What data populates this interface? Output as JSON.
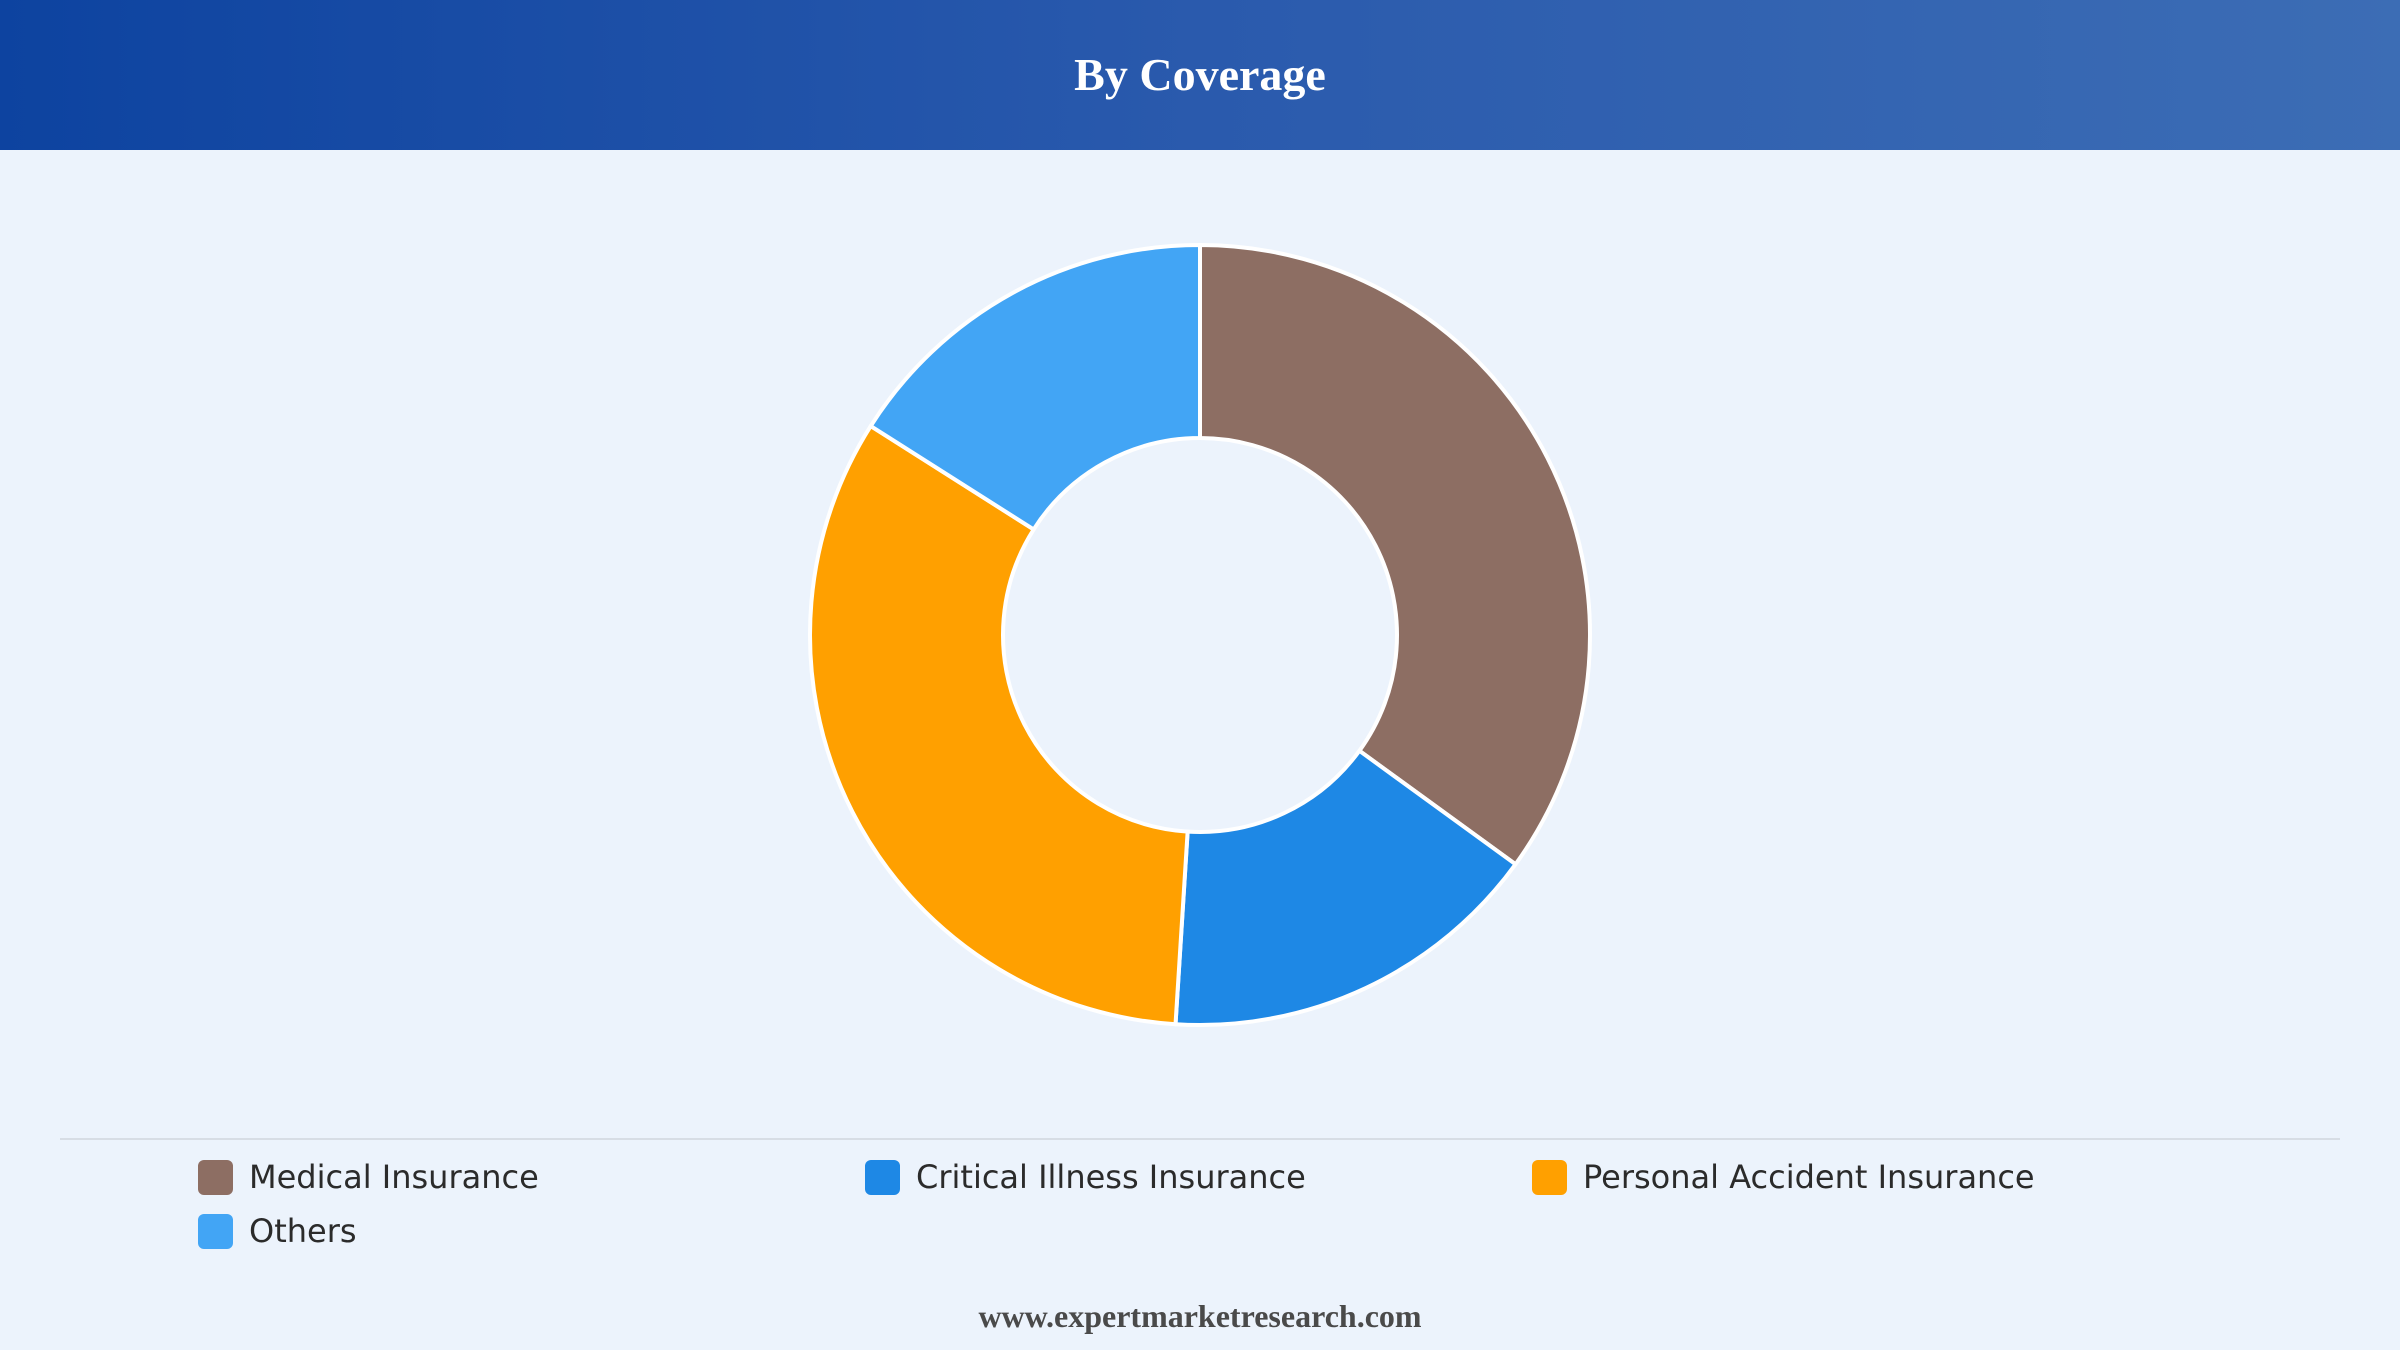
{
  "header": {
    "title": "By Coverage"
  },
  "chart_data": {
    "type": "pie",
    "style": "donut",
    "title": "By Coverage",
    "categories": [
      "Medical Insurance",
      "Critical Illness Insurance",
      "Personal Accident Insurance",
      "Others"
    ],
    "values": [
      35,
      16,
      33,
      16
    ],
    "unit": "%",
    "colors": [
      "#8d6e63",
      "#1e88e5",
      "#ffa000",
      "#42a5f5"
    ],
    "legend_position": "bottom",
    "grid": false
  },
  "legend": {
    "items": [
      {
        "label": "Medical Insurance",
        "color": "#8d6e63"
      },
      {
        "label": "Critical Illness Insurance",
        "color": "#1e88e5"
      },
      {
        "label": "Personal Accident Insurance",
        "color": "#ffa000"
      },
      {
        "label": "Others",
        "color": "#42a5f5"
      }
    ]
  },
  "footer": {
    "source": "www.expertmarketresearch.com"
  }
}
